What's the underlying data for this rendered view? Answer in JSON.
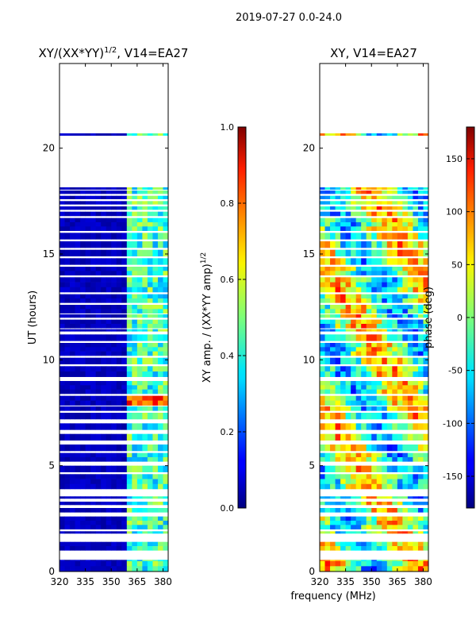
{
  "suptitle": "2019-07-27 0.0-24.0",
  "shared": {
    "xlabel": "frequency (MHz)",
    "ylabel": "UT (hours)",
    "x_ticks": [
      320,
      335,
      350,
      365,
      380
    ]
  },
  "chart_data": [
    {
      "type": "heatmap",
      "title_main": "XY/(XX*YY)",
      "title_sup": "1/2",
      "title_rest": ", V14=EA27",
      "xlabel": "",
      "ylabel": "UT (hours)",
      "xlim": [
        320,
        383
      ],
      "ylim": [
        0,
        24
      ],
      "y_ticks": [
        0,
        5,
        10,
        15,
        20
      ],
      "colorbar": {
        "label_main": "XY amp. / (XX*YY amp)",
        "label_sup": "1/2",
        "range": [
          0.0,
          1.0
        ],
        "ticks": [
          "0.0",
          "0.2",
          "0.4",
          "0.6",
          "0.8",
          "1.0"
        ],
        "colormap": "jet"
      },
      "data_summary": "Mostly low normalized amplitude (~0.05) across 320-360 MHz; elevated values (0.3-0.6) in 360-383 MHz; strong band near 7.9-8.2 UT; white gaps where data are flagged."
    },
    {
      "type": "heatmap",
      "title": "XY, V14=EA27",
      "xlabel": "frequency (MHz)",
      "ylabel": "",
      "xlim": [
        320,
        383
      ],
      "ylim": [
        0,
        24
      ],
      "y_ticks": [
        0,
        5,
        10,
        15,
        20
      ],
      "colorbar": {
        "label": "phase (deg)",
        "range": [
          -180,
          180
        ],
        "ticks": [
          "-150",
          "-100",
          "-50",
          "0",
          "50",
          "100",
          "150"
        ],
        "colormap": "jet"
      },
      "data_summary": "XY phase varies widely from -180 to 180 deg across frequency and time; white gaps where data are flagged."
    }
  ]
}
